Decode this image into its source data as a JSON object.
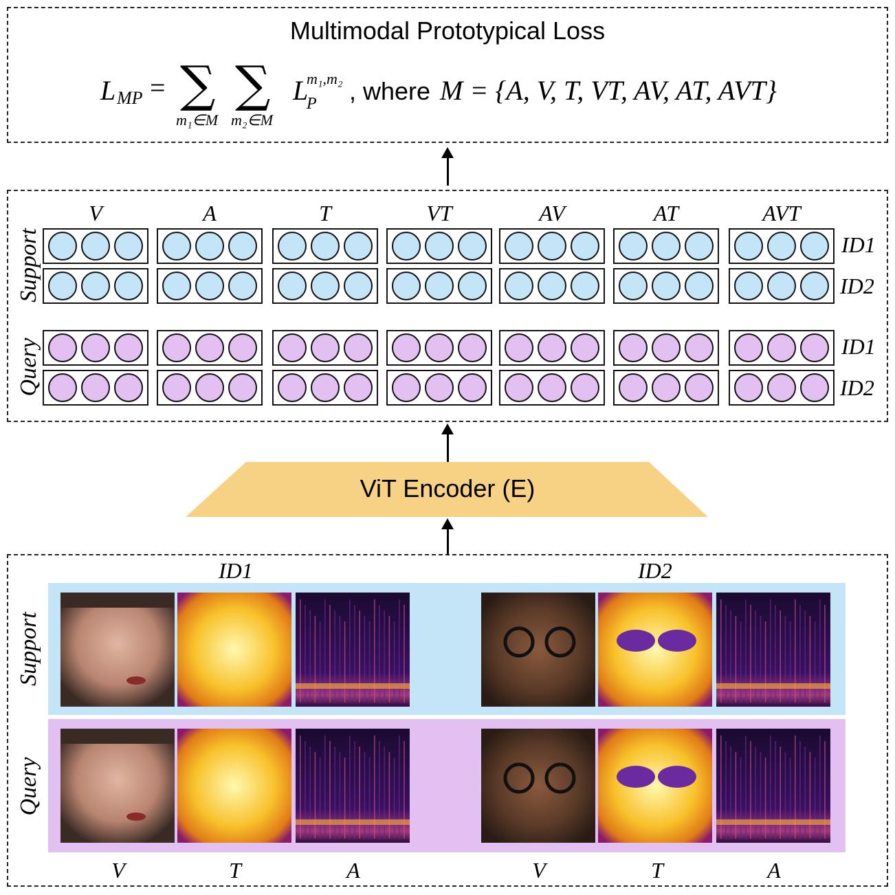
{
  "loss": {
    "title": "Multimodal Prototypical Loss",
    "lhs": "L",
    "lhs_sub": "MP",
    "eq": "=",
    "sum1_sub": "m₁∈M",
    "sum2_sub": "m₂∈M",
    "term": "L",
    "term_sub": "P",
    "term_sup": "m₁,m₂",
    "where": ", where",
    "set": "M = {A, V, T, VT, AV, AT, AVT}"
  },
  "embeddings": {
    "modalities": [
      "V",
      "A",
      "T",
      "VT",
      "AV",
      "AT",
      "AVT"
    ],
    "support_label": "Support",
    "query_label": "Query",
    "row_ids": [
      "ID1",
      "ID2",
      "ID1",
      "ID2"
    ]
  },
  "encoder": {
    "label": "ViT Encoder (E)"
  },
  "inputs": {
    "id1_label": "ID1",
    "id2_label": "ID2",
    "support_label": "Support",
    "query_label": "Query",
    "column_labels": [
      "V",
      "T",
      "A",
      "V",
      "T",
      "A"
    ],
    "colors": {
      "support_band": "#c4e4f7",
      "query_band": "#e3c0f2",
      "encoder": "#f7d285"
    }
  }
}
